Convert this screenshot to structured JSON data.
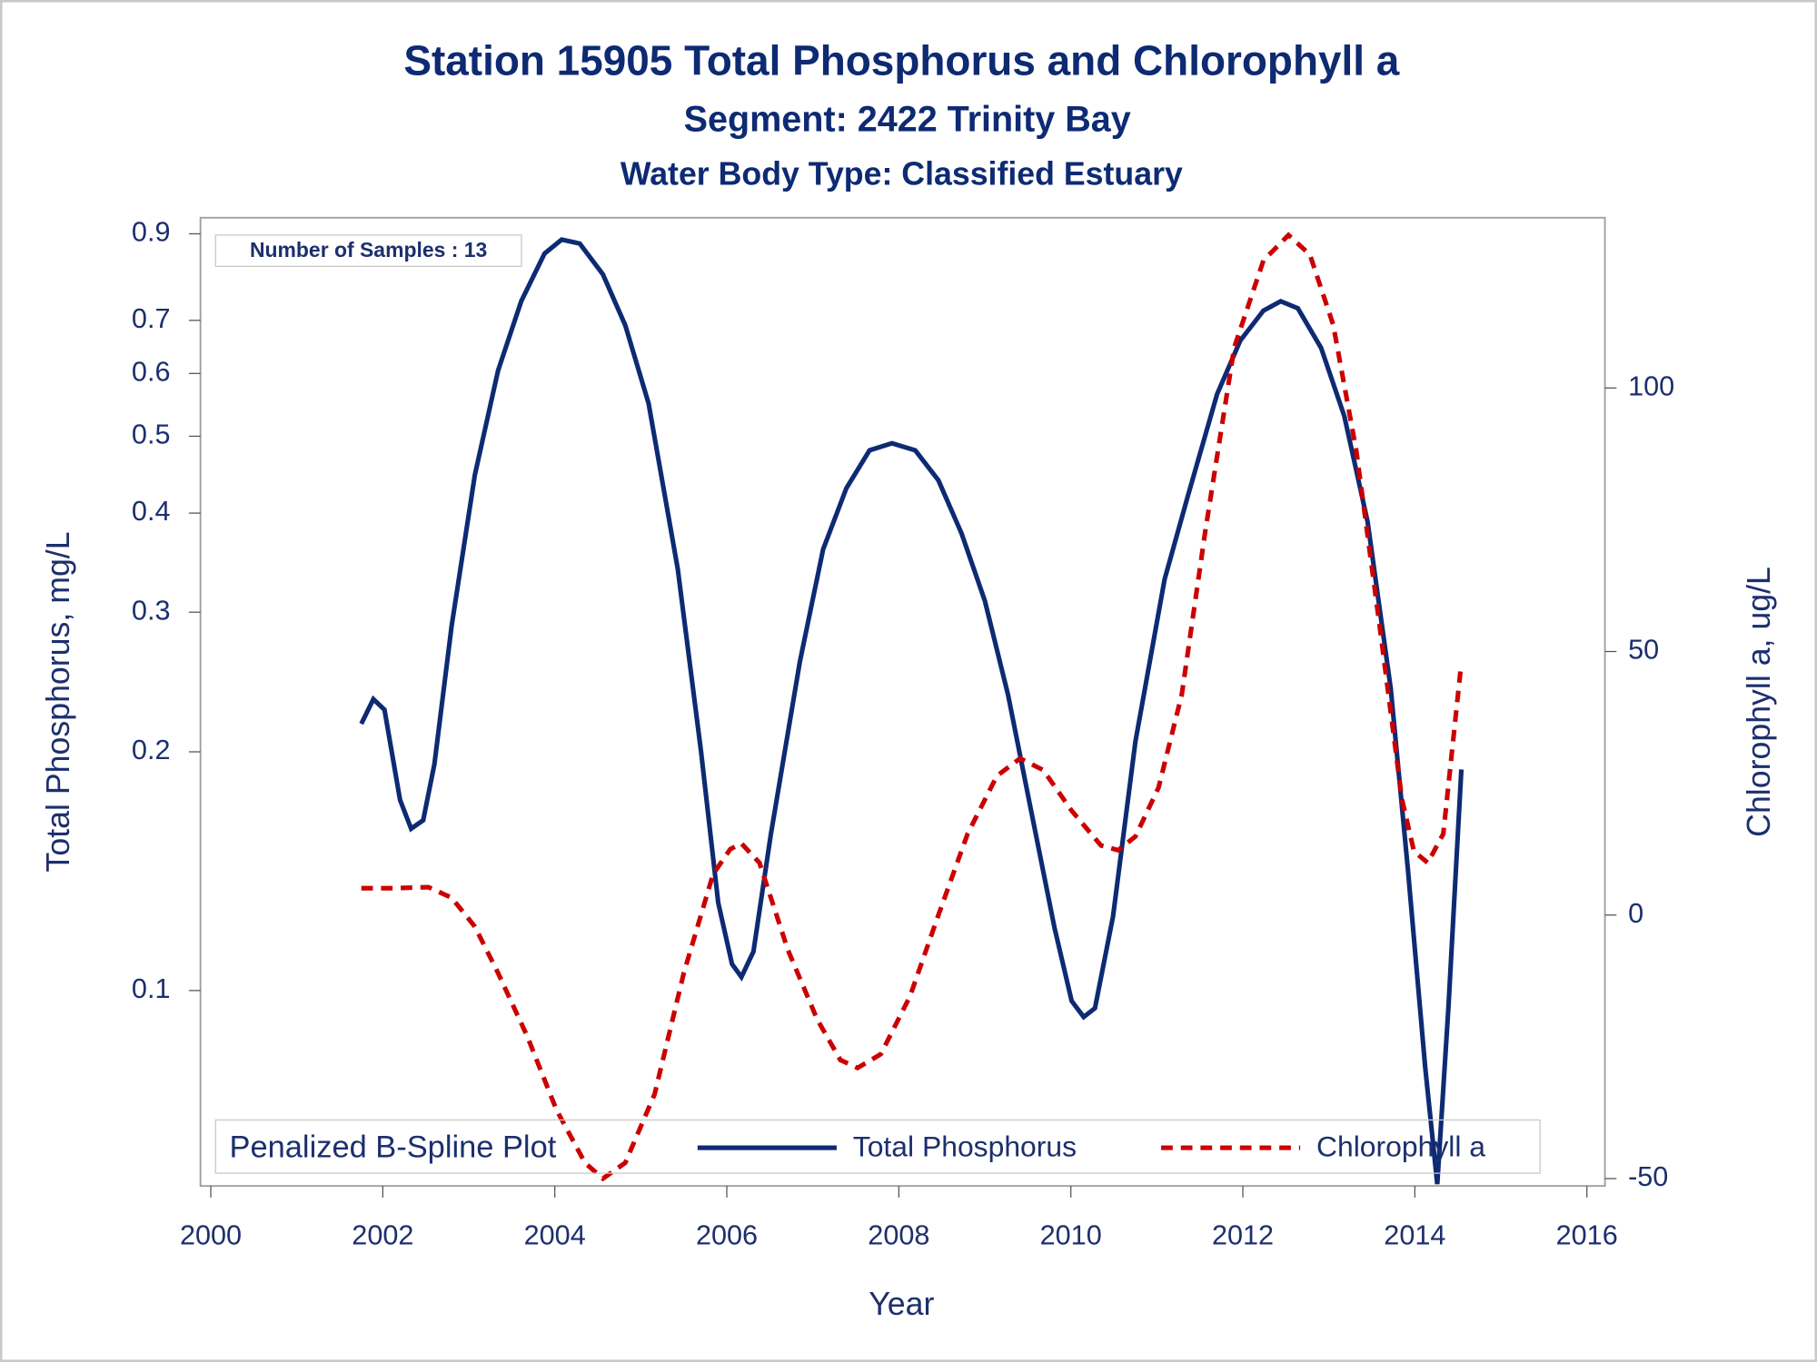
{
  "chart_data": {
    "type": "line",
    "title": "Station 15905  Total Phosphorus and Chlorophyll a",
    "subtitle": "Segment: 2422  Trinity Bay",
    "subtitle2": "Water Body Type: Classified Estuary",
    "x_label": "Year",
    "y_label": "Total Phosphorus, mg/L",
    "y2_label": "Chlorophyll a, ug/L",
    "annotation": "Number of Samples : 13",
    "legend_title": "Penalized B-Spline Plot",
    "legend_position": "bottom",
    "ylog": true,
    "xlim": [
      1999.88,
      2016.21
    ],
    "xticks": [
      2000,
      2002,
      2004,
      2006,
      2008,
      2010,
      2012,
      2014,
      2016
    ],
    "ylim": [
      0.0567,
      0.943
    ],
    "yticks": [
      0.1,
      0.2,
      0.3,
      0.4,
      0.5,
      0.6,
      0.7,
      0.9
    ],
    "y2lim": [
      -51.4,
      132.3
    ],
    "y2ticks": [
      -50,
      0,
      50,
      100
    ],
    "series": [
      {
        "name": "Total Phosphorus",
        "color": "#0d2a73",
        "style": "solid",
        "x": [
          2001.75,
          2001.89,
          2002.02,
          2002.2,
          2002.33,
          2002.47,
          2002.6,
          2002.8,
          2003.07,
          2003.34,
          2003.61,
          2003.88,
          2004.08,
          2004.29,
          2004.56,
          2004.82,
          2005.09,
          2005.43,
          2005.7,
          2005.9,
          2006.06,
          2006.17,
          2006.31,
          2006.51,
          2006.85,
          2007.12,
          2007.39,
          2007.66,
          2007.92,
          2008.19,
          2008.46,
          2008.73,
          2009.0,
          2009.27,
          2009.54,
          2009.81,
          2010.01,
          2010.15,
          2010.28,
          2010.49,
          2010.75,
          2011.09,
          2011.36,
          2011.7,
          2011.97,
          2012.24,
          2012.44,
          2012.64,
          2012.91,
          2013.18,
          2013.45,
          2013.72,
          2013.92,
          2014.12,
          2014.26,
          2014.39,
          2014.54
        ],
        "values": [
          0.217,
          0.233,
          0.226,
          0.174,
          0.16,
          0.164,
          0.193,
          0.288,
          0.447,
          0.605,
          0.74,
          0.85,
          0.885,
          0.875,
          0.8,
          0.69,
          0.55,
          0.34,
          0.2,
          0.129,
          0.108,
          0.104,
          0.112,
          0.157,
          0.26,
          0.36,
          0.43,
          0.48,
          0.49,
          0.48,
          0.44,
          0.377,
          0.31,
          0.236,
          0.168,
          0.12,
          0.097,
          0.0926,
          0.095,
          0.124,
          0.206,
          0.33,
          0.42,
          0.565,
          0.66,
          0.72,
          0.74,
          0.725,
          0.646,
          0.53,
          0.39,
          0.24,
          0.142,
          0.08,
          0.057,
          0.095,
          0.19
        ]
      },
      {
        "name": "Chlorophyll a",
        "color": "#cc0000",
        "style": "dashed",
        "axis": "y2",
        "x": [
          2001.75,
          2002.13,
          2002.53,
          2002.8,
          2003.07,
          2003.34,
          2003.68,
          2004.02,
          2004.35,
          2004.56,
          2004.82,
          2005.16,
          2005.5,
          2005.84,
          2006.04,
          2006.17,
          2006.38,
          2006.71,
          2007.05,
          2007.32,
          2007.52,
          2007.79,
          2008.13,
          2008.46,
          2008.8,
          2009.14,
          2009.41,
          2009.68,
          2010.01,
          2010.35,
          2010.55,
          2010.75,
          2011.02,
          2011.29,
          2011.56,
          2011.9,
          2012.24,
          2012.53,
          2012.78,
          2013.05,
          2013.32,
          2013.59,
          2013.85,
          2013.99,
          2014.15,
          2014.33,
          2014.53
        ],
        "values": [
          5.1,
          5.1,
          5.3,
          3.3,
          -2.2,
          -11,
          -23,
          -37,
          -47,
          -50,
          -47,
          -34,
          -11,
          7.7,
          12.5,
          13.6,
          9.9,
          -6.6,
          -19.8,
          -27.5,
          -29,
          -26.4,
          -15.4,
          0,
          15.4,
          26.4,
          29.7,
          27.5,
          19.8,
          13.2,
          12.3,
          14.9,
          24.2,
          41.8,
          72.5,
          107.7,
          124.2,
          129,
          125.3,
          112,
          88,
          55,
          22,
          12.1,
          9.9,
          15.4,
          46.2
        ]
      }
    ]
  }
}
